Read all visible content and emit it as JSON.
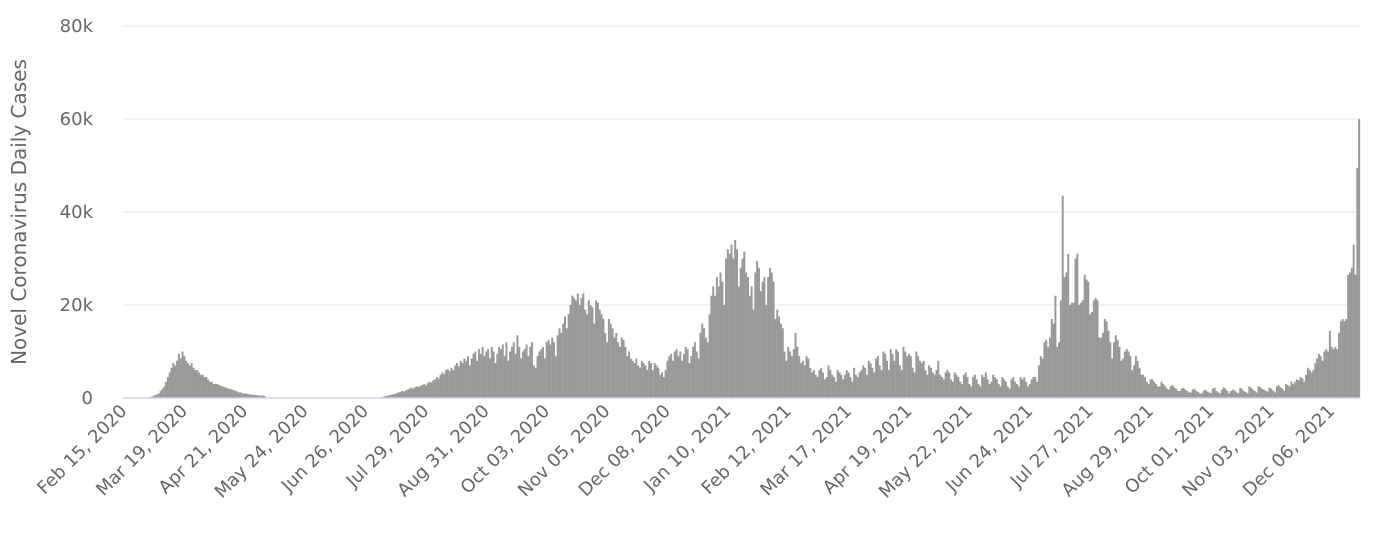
{
  "chart_data": {
    "type": "bar",
    "y_label": "Novel Coronavirus Daily Cases",
    "color": "#999999",
    "grid": true,
    "ylim": [
      0,
      80000
    ],
    "yticks": [
      0,
      {
        "value": 20000,
        "label": "20k"
      },
      {
        "value": 40000,
        "label": "40k"
      },
      {
        "value": 60000,
        "label": "60k"
      },
      {
        "value": 80000,
        "label": "80k"
      }
    ],
    "categories": [
      "Feb 15, 2020",
      null,
      null,
      null,
      null,
      null,
      null,
      null,
      null,
      null,
      null,
      null,
      null,
      null,
      null,
      null,
      null,
      null,
      null,
      null,
      null,
      null,
      null,
      null,
      null,
      null,
      null,
      null,
      null,
      null,
      null,
      null,
      null,
      "Mar 19, 2020",
      null,
      null,
      null,
      null,
      null,
      null,
      null,
      null,
      null,
      null,
      null,
      null,
      null,
      null,
      null,
      null,
      null,
      null,
      null,
      null,
      null,
      null,
      null,
      null,
      null,
      null,
      null,
      null,
      null,
      null,
      null,
      null,
      "Apr 21, 2020",
      null,
      null,
      null,
      null,
      null,
      null,
      null,
      null,
      null,
      null,
      null,
      null,
      null,
      null,
      null,
      null,
      null,
      null,
      null,
      null,
      null,
      null,
      null,
      null,
      null,
      null,
      null,
      null,
      null,
      null,
      null,
      null,
      "May 24, 2020",
      null,
      null,
      null,
      null,
      null,
      null,
      null,
      null,
      null,
      null,
      null,
      null,
      null,
      null,
      null,
      null,
      null,
      null,
      null,
      null,
      null,
      null,
      null,
      null,
      null,
      null,
      null,
      null,
      null,
      null,
      null,
      null,
      "Jun 26, 2020",
      null,
      null,
      null,
      null,
      null,
      null,
      null,
      null,
      null,
      null,
      null,
      null,
      null,
      null,
      null,
      null,
      null,
      null,
      null,
      null,
      null,
      null,
      null,
      null,
      null,
      null,
      null,
      null,
      null,
      null,
      null,
      null,
      "Jul 29, 2020",
      null,
      null,
      null,
      null,
      null,
      null,
      null,
      null,
      null,
      null,
      null,
      null,
      null,
      null,
      null,
      null,
      null,
      null,
      null,
      null,
      null,
      null,
      null,
      null,
      null,
      null,
      null,
      null,
      null,
      null,
      null,
      null,
      "Aug 31, 2020",
      null,
      null,
      null,
      null,
      null,
      null,
      null,
      null,
      null,
      null,
      null,
      null,
      null,
      null,
      null,
      null,
      null,
      null,
      null,
      null,
      null,
      null,
      null,
      null,
      null,
      null,
      null,
      null,
      null,
      null,
      null,
      null,
      "Oct 03, 2020",
      null,
      null,
      null,
      null,
      null,
      null,
      null,
      null,
      null,
      null,
      null,
      null,
      null,
      null,
      null,
      null,
      null,
      null,
      null,
      null,
      null,
      null,
      null,
      null,
      null,
      null,
      null,
      null,
      null,
      null,
      null,
      null,
      "Nov 05, 2020",
      null,
      null,
      null,
      null,
      null,
      null,
      null,
      null,
      null,
      null,
      null,
      null,
      null,
      null,
      null,
      null,
      null,
      null,
      null,
      null,
      null,
      null,
      null,
      null,
      null,
      null,
      null,
      null,
      null,
      null,
      null,
      null,
      "Dec 08, 2020",
      null,
      null,
      null,
      null,
      null,
      null,
      null,
      null,
      null,
      null,
      null,
      null,
      null,
      null,
      null,
      null,
      null,
      null,
      null,
      null,
      null,
      null,
      null,
      null,
      null,
      null,
      null,
      null,
      null,
      null,
      null,
      null,
      "Jan 10, 2021",
      null,
      null,
      null,
      null,
      null,
      null,
      null,
      null,
      null,
      null,
      null,
      null,
      null,
      null,
      null,
      null,
      null,
      null,
      null,
      null,
      null,
      null,
      null,
      null,
      null,
      null,
      null,
      null,
      null,
      null,
      null,
      null,
      "Feb 12, 2021",
      null,
      null,
      null,
      null,
      null,
      null,
      null,
      null,
      null,
      null,
      null,
      null,
      null,
      null,
      null,
      null,
      null,
      null,
      null,
      null,
      null,
      null,
      null,
      null,
      null,
      null,
      null,
      null,
      null,
      null,
      null,
      null,
      "Mar 17, 2021",
      null,
      null,
      null,
      null,
      null,
      null,
      null,
      null,
      null,
      null,
      null,
      null,
      null,
      null,
      null,
      null,
      null,
      null,
      null,
      null,
      null,
      null,
      null,
      null,
      null,
      null,
      null,
      null,
      null,
      null,
      null,
      null,
      "Apr 19, 2021",
      null,
      null,
      null,
      null,
      null,
      null,
      null,
      null,
      null,
      null,
      null,
      null,
      null,
      null,
      null,
      null,
      null,
      null,
      null,
      null,
      null,
      null,
      null,
      null,
      null,
      null,
      null,
      null,
      null,
      null,
      null,
      null,
      "May 22, 2021",
      null,
      null,
      null,
      null,
      null,
      null,
      null,
      null,
      null,
      null,
      null,
      null,
      null,
      null,
      null,
      null,
      null,
      null,
      null,
      null,
      null,
      null,
      null,
      null,
      null,
      null,
      null,
      null,
      null,
      null,
      null,
      null,
      "Jun 24, 2021",
      null,
      null,
      null,
      null,
      null,
      null,
      null,
      null,
      null,
      null,
      null,
      null,
      null,
      null,
      null,
      null,
      null,
      null,
      null,
      null,
      null,
      null,
      null,
      null,
      null,
      null,
      null,
      null,
      null,
      null,
      null,
      null,
      "Jul 27, 2021",
      null,
      null,
      null,
      null,
      null,
      null,
      null,
      null,
      null,
      null,
      null,
      null,
      null,
      null,
      null,
      null,
      null,
      null,
      null,
      null,
      null,
      null,
      null,
      null,
      null,
      null,
      null,
      null,
      null,
      null,
      null,
      null,
      "Aug 29, 2021",
      null,
      null,
      null,
      null,
      null,
      null,
      null,
      null,
      null,
      null,
      null,
      null,
      null,
      null,
      null,
      null,
      null,
      null,
      null,
      null,
      null,
      null,
      null,
      null,
      null,
      null,
      null,
      null,
      null,
      null,
      null,
      null,
      "Oct 01, 2021",
      null,
      null,
      null,
      null,
      null,
      null,
      null,
      null,
      null,
      null,
      null,
      null,
      null,
      null,
      null,
      null,
      null,
      null,
      null,
      null,
      null,
      null,
      null,
      null,
      null,
      null,
      null,
      null,
      null,
      null,
      null,
      null,
      "Nov 03, 2021",
      null,
      null,
      null,
      null,
      null,
      null,
      null,
      null,
      null,
      null,
      null,
      null,
      null,
      null,
      null,
      null,
      null,
      null,
      null,
      null,
      null,
      null,
      null,
      null,
      null,
      null,
      null,
      null,
      null,
      null,
      null,
      null,
      "Dec 06, 2021",
      null,
      null,
      null,
      null,
      null,
      null,
      null,
      null,
      null,
      null,
      null,
      null,
      null,
      null,
      null
    ],
    "values": [
      0,
      0,
      0,
      0,
      0,
      0,
      0,
      0,
      0,
      0,
      0,
      0,
      0,
      0,
      0,
      300,
      400,
      600,
      800,
      1000,
      1500,
      2000,
      2500,
      3500,
      4500,
      5500,
      6500,
      7500,
      7000,
      8000,
      9500,
      8500,
      10000,
      9000,
      8000,
      7500,
      7000,
      7500,
      6500,
      6000,
      6000,
      5500,
      5000,
      5000,
      4500,
      4500,
      4000,
      3500,
      3500,
      3000,
      3000,
      3000,
      2800,
      2600,
      2500,
      2300,
      2200,
      2000,
      2000,
      1800,
      1700,
      1500,
      1400,
      1200,
      1200,
      1000,
      1000,
      900,
      800,
      800,
      700,
      700,
      600,
      600,
      500,
      500,
      500,
      400,
      0,
      0,
      0,
      0,
      0,
      0,
      0,
      0,
      0,
      0,
      0,
      0,
      0,
      0,
      0,
      0,
      0,
      0,
      0,
      0,
      0,
      0,
      0,
      0,
      0,
      0,
      0,
      0,
      0,
      0,
      0,
      0,
      0,
      0,
      0,
      0,
      0,
      0,
      0,
      0,
      0,
      0,
      0,
      0,
      0,
      0,
      0,
      0,
      0,
      0,
      0,
      0,
      0,
      0,
      0,
      0,
      0,
      0,
      0,
      0,
      0,
      0,
      0,
      0,
      300,
      400,
      500,
      600,
      700,
      800,
      900,
      1000,
      1200,
      1300,
      1500,
      1400,
      1600,
      1800,
      2000,
      2200,
      2000,
      2300,
      2500,
      2400,
      2600,
      2800,
      3000,
      2700,
      3200,
      3500,
      3300,
      3800,
      4000,
      4500,
      4200,
      5000,
      5500,
      5200,
      6000,
      6200,
      5800,
      6500,
      6000,
      7000,
      7500,
      6800,
      8000,
      7500,
      8500,
      8000,
      9000,
      7000,
      8500,
      9500,
      10000,
      8000,
      10500,
      9500,
      11000,
      9000,
      10000,
      10500,
      8500,
      11000,
      10000,
      7500,
      9500,
      11000,
      10500,
      11500,
      9000,
      12000,
      8000,
      10000,
      11000,
      12000,
      9500,
      13500,
      11000,
      8500,
      10000,
      10500,
      11500,
      9000,
      11000,
      12000,
      7000,
      6500,
      9000,
      10000,
      10500,
      11000,
      8500,
      12000,
      12500,
      11500,
      13000,
      12000,
      9000,
      13500,
      15000,
      14000,
      16000,
      17500,
      15000,
      18000,
      20000,
      22000,
      21500,
      21000,
      22500,
      20000,
      21500,
      22500,
      19000,
      18000,
      21000,
      20000,
      19500,
      16000,
      21000,
      20500,
      19000,
      18000,
      17000,
      14000,
      12000,
      17000,
      16000,
      15000,
      13000,
      14000,
      12000,
      11000,
      13000,
      12500,
      11000,
      9000,
      10000,
      8500,
      8000,
      7500,
      8500,
      7000,
      6500,
      8000,
      7500,
      7000,
      6000,
      8000,
      7500,
      6000,
      7500,
      7000,
      6500,
      5000,
      5500,
      4500,
      6000,
      8000,
      9000,
      9500,
      8000,
      10000,
      10500,
      9000,
      10000,
      8000,
      9500,
      11000,
      10500,
      7500,
      9000,
      11000,
      12000,
      10000,
      8500,
      14000,
      16000,
      15000,
      13000,
      12000,
      18000,
      22000,
      24000,
      22000,
      26000,
      24000,
      27000,
      25000,
      20000,
      30000,
      32000,
      31000,
      33000,
      30000,
      34000,
      32000,
      24000,
      28000,
      30000,
      31500,
      27000,
      26000,
      22000,
      24000,
      19000,
      27000,
      29500,
      28000,
      23000,
      25000,
      26000,
      20000,
      26000,
      28000,
      27000,
      25000,
      17000,
      19000,
      17500,
      16000,
      15000,
      10000,
      8000,
      11000,
      10000,
      9000,
      10500,
      14000,
      11000,
      9000,
      7500,
      8000,
      7000,
      9000,
      8500,
      6500,
      5500,
      6000,
      5000,
      4500,
      6000,
      6500,
      5500,
      4000,
      4500,
      7000,
      6000,
      5000,
      4500,
      3500,
      6000,
      5500,
      5000,
      4000,
      5000,
      6000,
      5500,
      4500,
      3500,
      6500,
      5000,
      4500,
      5500,
      6000,
      7000,
      6500,
      5000,
      8000,
      7500,
      6500,
      5500,
      8500,
      9000,
      7000,
      6000,
      10000,
      9500,
      8000,
      6000,
      10500,
      9500,
      8000,
      10500,
      10000,
      7000,
      6000,
      11000,
      10000,
      9000,
      9500,
      9000,
      6500,
      5500,
      10000,
      9000,
      8000,
      7500,
      8000,
      6000,
      5000,
      7000,
      6500,
      5500,
      5000,
      6000,
      8000,
      5000,
      4500,
      4000,
      5500,
      6000,
      5500,
      4000,
      3500,
      5500,
      5000,
      4500,
      3500,
      3000,
      5000,
      5500,
      4500,
      3000,
      2500,
      4500,
      5000,
      4000,
      3000,
      2500,
      5000,
      4500,
      5500,
      4000,
      3000,
      3500,
      5000,
      4500,
      4000,
      3000,
      2500,
      4500,
      4000,
      3500,
      2500,
      2000,
      4000,
      4500,
      3500,
      3000,
      2500,
      4500,
      4000,
      4500,
      3500,
      2500,
      3000,
      4000,
      4500,
      4500,
      3500,
      7000,
      9000,
      8500,
      12000,
      12500,
      11000,
      13000,
      17000,
      16000,
      22000,
      11000,
      12000,
      21000,
      43500,
      26000,
      27000,
      31000,
      20000,
      20500,
      20500,
      30000,
      31000,
      20000,
      20500,
      21000,
      26500,
      25500,
      25000,
      18000,
      18500,
      21000,
      21500,
      21000,
      13000,
      13000,
      14000,
      17000,
      16500,
      14500,
      12000,
      8500,
      12000,
      13500,
      12500,
      11000,
      8000,
      8500,
      10000,
      10500,
      10000,
      9000,
      6000,
      7000,
      9000,
      8000,
      6500,
      5000,
      5000,
      4500,
      3500,
      3000,
      4000,
      4000,
      3500,
      3000,
      2500,
      2500,
      3500,
      3000,
      2500,
      2000,
      1800,
      2500,
      2800,
      2300,
      2000,
      1500,
      1500,
      2000,
      2200,
      1800,
      1500,
      1200,
      1200,
      1800,
      2000,
      1500,
      1300,
      1000,
      1000,
      1500,
      1800,
      1400,
      1200,
      1000,
      2000,
      2200,
      1500,
      1200,
      1000,
      1800,
      2300,
      2000,
      1500,
      1000,
      1500,
      1800,
      1600,
      1200,
      1000,
      2200,
      2000,
      1500,
      1300,
      1000,
      2500,
      2200,
      1800,
      1500,
      1200,
      2500,
      2300,
      2000,
      1800,
      1500,
      1400,
      2200,
      2000,
      1600,
      1200,
      2500,
      2800,
      2300,
      2000,
      1500,
      3000,
      2800,
      2500,
      3500,
      3000,
      3500,
      4000,
      3800,
      4500,
      4200,
      3500,
      5000,
      6500,
      6000,
      5500,
      6000,
      7500,
      8500,
      9500,
      9000,
      8000,
      10000,
      10500,
      10000,
      14500,
      11000,
      10500,
      11000,
      10500,
      14000,
      16500,
      17000,
      16500,
      17000,
      26500,
      27000,
      28000,
      33000,
      26500,
      49500,
      60000
    ]
  }
}
